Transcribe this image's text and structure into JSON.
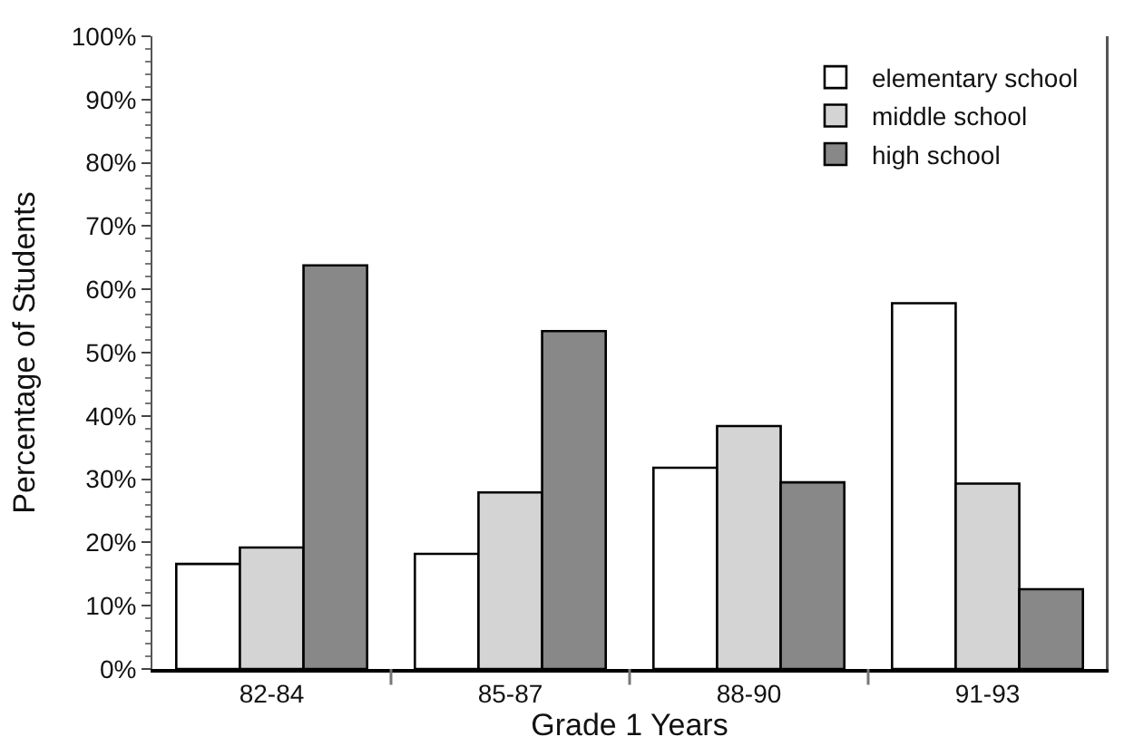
{
  "chart_data": {
    "type": "bar",
    "xlabel": "Grade 1 Years",
    "ylabel": "Percentage of Students",
    "categories": [
      "82-84",
      "85-87",
      "88-90",
      "91-93"
    ],
    "series": [
      {
        "name": "elementary school",
        "color": "#ffffff",
        "values": [
          16.6,
          18.2,
          31.8,
          57.8
        ]
      },
      {
        "name": "middle school",
        "color": "#d4d4d4",
        "values": [
          19.2,
          27.9,
          38.4,
          29.3
        ]
      },
      {
        "name": "high school",
        "color": "#888888",
        "values": [
          63.8,
          53.4,
          29.5,
          12.6
        ]
      }
    ],
    "ylim": [
      0,
      100
    ],
    "yticks": [
      {
        "value": 0,
        "label": "0%"
      },
      {
        "value": 10,
        "label": "10%"
      },
      {
        "value": 20,
        "label": "20%"
      },
      {
        "value": 30,
        "label": "30%"
      },
      {
        "value": 40,
        "label": "40%"
      },
      {
        "value": 50,
        "label": "50%"
      },
      {
        "value": 60,
        "label": "60%"
      },
      {
        "value": 70,
        "label": "70%"
      },
      {
        "value": 80,
        "label": "80%"
      },
      {
        "value": 90,
        "label": "90%"
      },
      {
        "value": 100,
        "label": "100%"
      }
    ],
    "legend": "top right"
  }
}
